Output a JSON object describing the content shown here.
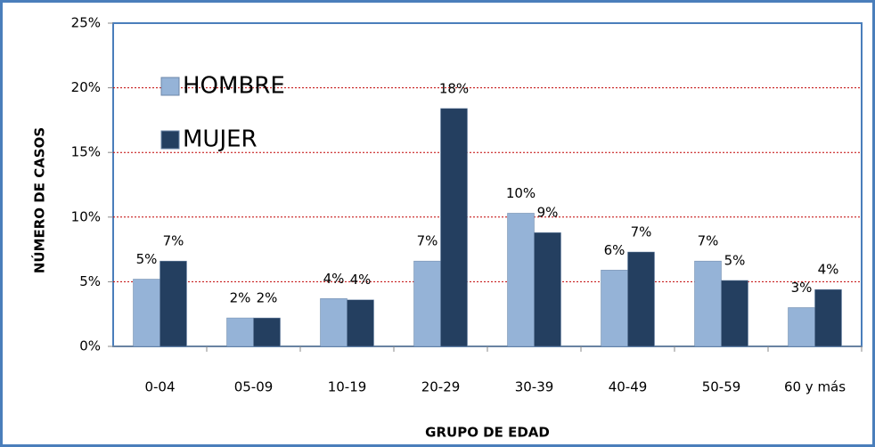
{
  "chart_data": {
    "type": "bar",
    "categories": [
      "0-04",
      "05-09",
      "10-19",
      "20-29",
      "30-39",
      "40-49",
      "50-59",
      "60 y más"
    ],
    "series": [
      {
        "name": "HOMBRE",
        "color": "#95b3d7",
        "values": [
          5.2,
          2.2,
          3.7,
          6.6,
          10.3,
          5.9,
          6.6,
          3.0
        ],
        "value_labels": [
          "5%",
          "2%",
          "4%",
          "7%",
          "10%",
          "6%",
          "7%",
          "3%"
        ]
      },
      {
        "name": "MUJER",
        "color": "#243f60",
        "values": [
          6.6,
          2.2,
          3.6,
          18.4,
          8.8,
          7.3,
          5.1,
          4.4
        ],
        "value_labels": [
          "7%",
          "2%",
          "4%",
          "18%",
          "9%",
          "7%",
          "5%",
          "4%"
        ]
      }
    ],
    "ylabel": "NÚMERO DE CASOS",
    "xlabel": "GRUPO DE EDAD",
    "ylim": [
      0,
      25
    ],
    "yticks": [
      {
        "value": 0,
        "label": "0%"
      },
      {
        "value": 5,
        "label": "5%"
      },
      {
        "value": 10,
        "label": "10%"
      },
      {
        "value": 15,
        "label": "15%"
      },
      {
        "value": 20,
        "label": "20%"
      },
      {
        "value": 25,
        "label": "25%"
      }
    ],
    "grid": true,
    "grid_color": "#c00000",
    "legend": "top-left"
  }
}
